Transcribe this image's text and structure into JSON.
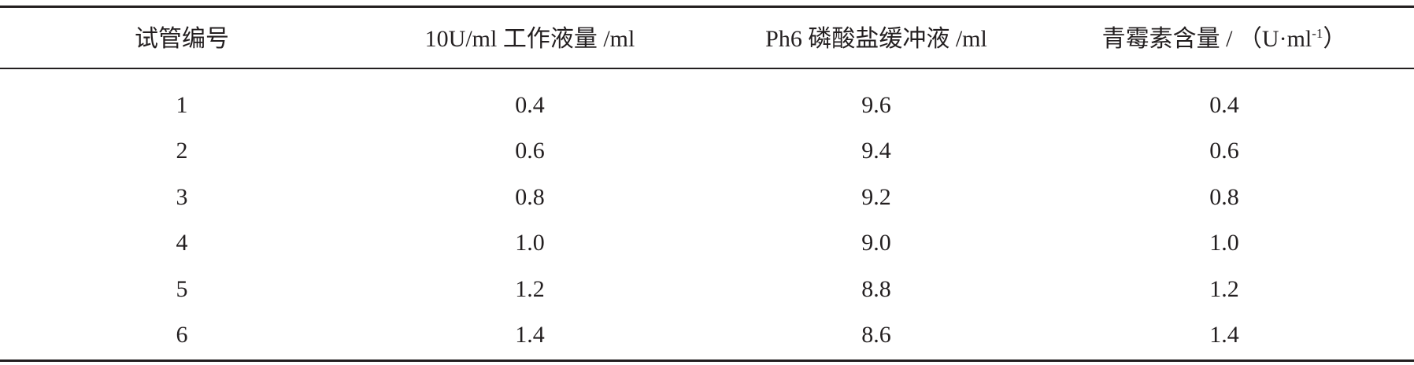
{
  "table": {
    "header": [
      "试管编号",
      "10U/ml 工作液量 /ml",
      "Ph6 磷酸盐缓冲液 /ml",
      {
        "text": "青霉素含量 / （U·ml",
        "sup": "-1",
        "close": "）"
      }
    ],
    "rows": [
      [
        "1",
        "0.4",
        "9.6",
        "0.4"
      ],
      [
        "2",
        "0.6",
        "9.4",
        "0.6"
      ],
      [
        "3",
        "0.8",
        "9.2",
        "0.8"
      ],
      [
        "4",
        "1.0",
        "9.0",
        "1.0"
      ],
      [
        "5",
        "1.2",
        "8.8",
        "1.2"
      ],
      [
        "6",
        "1.4",
        "8.6",
        "1.4"
      ]
    ]
  }
}
